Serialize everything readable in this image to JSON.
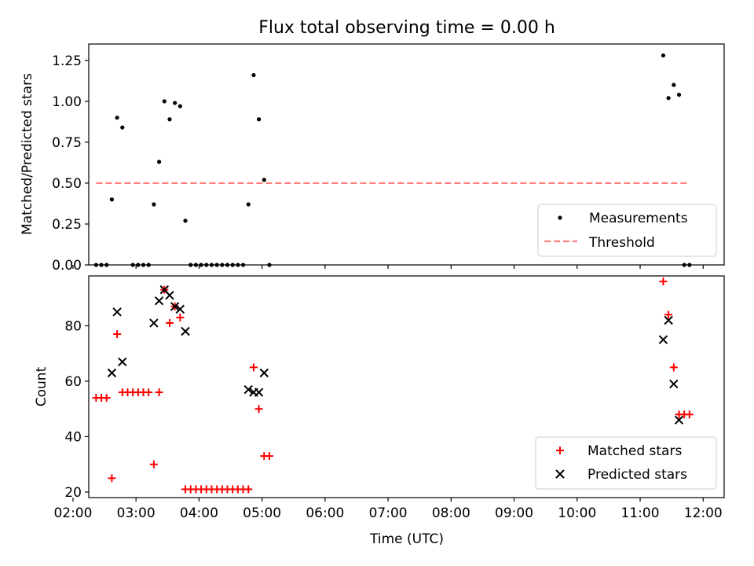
{
  "chart_data": [
    {
      "type": "scatter",
      "title": "Flux total observing time = 0.00 h",
      "ylabel": "Matched/Predicted stars",
      "xlabel": "",
      "xlim": [
        "02:15",
        "12:20"
      ],
      "ylim": [
        0,
        1.35
      ],
      "x_ticks": [
        "02:00",
        "03:00",
        "04:00",
        "05:00",
        "06:00",
        "07:00",
        "08:00",
        "09:00",
        "10:00",
        "11:00",
        "12:00"
      ],
      "y_ticks": [
        "0.00",
        "0.25",
        "0.50",
        "0.75",
        "1.00",
        "1.25"
      ],
      "legend_position": "lower-right",
      "series": [
        {
          "name": "Measurements",
          "marker": "dot",
          "color": "#000000",
          "points": [
            [
              "02:22",
              0
            ],
            [
              "02:27",
              0
            ],
            [
              "02:32",
              0
            ],
            [
              "02:37",
              0.4
            ],
            [
              "02:42",
              0.9
            ],
            [
              "02:47",
              0.84
            ],
            [
              "02:57",
              0
            ],
            [
              "03:02",
              0
            ],
            [
              "03:07",
              0
            ],
            [
              "03:12",
              0
            ],
            [
              "03:17",
              0.37
            ],
            [
              "03:22",
              0.63
            ],
            [
              "03:27",
              1.0
            ],
            [
              "03:32",
              0.89
            ],
            [
              "03:37",
              0.99
            ],
            [
              "03:42",
              0.97
            ],
            [
              "03:47",
              0.27
            ],
            [
              "03:52",
              0
            ],
            [
              "03:57",
              0
            ],
            [
              "04:02",
              0
            ],
            [
              "04:07",
              0
            ],
            [
              "04:12",
              0
            ],
            [
              "04:17",
              0
            ],
            [
              "04:22",
              0
            ],
            [
              "04:27",
              0
            ],
            [
              "04:32",
              0
            ],
            [
              "04:37",
              0
            ],
            [
              "04:42",
              0
            ],
            [
              "04:47",
              0.37
            ],
            [
              "04:52",
              1.16
            ],
            [
              "04:57",
              0.89
            ],
            [
              "05:02",
              0.52
            ],
            [
              "05:07",
              0
            ],
            [
              "11:22",
              1.28
            ],
            [
              "11:27",
              1.02
            ],
            [
              "11:32",
              1.1
            ],
            [
              "11:37",
              1.04
            ],
            [
              "11:42",
              0
            ],
            [
              "11:47",
              0
            ]
          ]
        },
        {
          "name": "Threshold",
          "marker": "dashed-line",
          "color": "#ff7f7f",
          "points": [
            [
              "02:22",
              0.5
            ],
            [
              "11:47",
              0.5
            ]
          ]
        }
      ]
    },
    {
      "type": "scatter",
      "title": "",
      "ylabel": "Count",
      "xlabel": "Time (UTC)",
      "xlim": [
        "02:15",
        "12:20"
      ],
      "ylim": [
        18,
        98
      ],
      "x_ticks": [
        "02:00",
        "03:00",
        "04:00",
        "05:00",
        "06:00",
        "07:00",
        "08:00",
        "09:00",
        "10:00",
        "11:00",
        "12:00"
      ],
      "y_ticks": [
        "20",
        "40",
        "60",
        "80"
      ],
      "legend_position": "lower-right",
      "series": [
        {
          "name": "Matched stars",
          "marker": "plus",
          "color": "#ff0000",
          "points": [
            [
              "02:22",
              54
            ],
            [
              "02:27",
              54
            ],
            [
              "02:32",
              54
            ],
            [
              "02:37",
              25
            ],
            [
              "02:42",
              77
            ],
            [
              "02:47",
              56
            ],
            [
              "02:52",
              56
            ],
            [
              "02:57",
              56
            ],
            [
              "03:02",
              56
            ],
            [
              "03:07",
              56
            ],
            [
              "03:12",
              56
            ],
            [
              "03:17",
              30
            ],
            [
              "03:22",
              56
            ],
            [
              "03:27",
              93
            ],
            [
              "03:32",
              81
            ],
            [
              "03:37",
              87
            ],
            [
              "03:42",
              83
            ],
            [
              "03:47",
              21
            ],
            [
              "03:52",
              21
            ],
            [
              "03:57",
              21
            ],
            [
              "04:02",
              21
            ],
            [
              "04:07",
              21
            ],
            [
              "04:12",
              21
            ],
            [
              "04:17",
              21
            ],
            [
              "04:22",
              21
            ],
            [
              "04:27",
              21
            ],
            [
              "04:32",
              21
            ],
            [
              "04:37",
              21
            ],
            [
              "04:42",
              21
            ],
            [
              "04:47",
              21
            ],
            [
              "04:52",
              65
            ],
            [
              "04:57",
              50
            ],
            [
              "05:02",
              33
            ],
            [
              "05:07",
              33
            ],
            [
              "11:22",
              96
            ],
            [
              "11:27",
              84
            ],
            [
              "11:32",
              65
            ],
            [
              "11:37",
              48
            ],
            [
              "11:42",
              48
            ],
            [
              "11:47",
              48
            ]
          ]
        },
        {
          "name": "Predicted stars",
          "marker": "x",
          "color": "#000000",
          "points": [
            [
              "02:37",
              63
            ],
            [
              "02:42",
              85
            ],
            [
              "02:47",
              67
            ],
            [
              "03:17",
              81
            ],
            [
              "03:22",
              89
            ],
            [
              "03:27",
              93
            ],
            [
              "03:32",
              91
            ],
            [
              "03:37",
              87
            ],
            [
              "03:42",
              86
            ],
            [
              "03:47",
              78
            ],
            [
              "04:47",
              57
            ],
            [
              "04:52",
              56
            ],
            [
              "04:57",
              56
            ],
            [
              "05:02",
              63
            ],
            [
              "11:22",
              75
            ],
            [
              "11:27",
              82
            ],
            [
              "11:32",
              59
            ],
            [
              "11:37",
              46
            ]
          ]
        }
      ]
    }
  ]
}
